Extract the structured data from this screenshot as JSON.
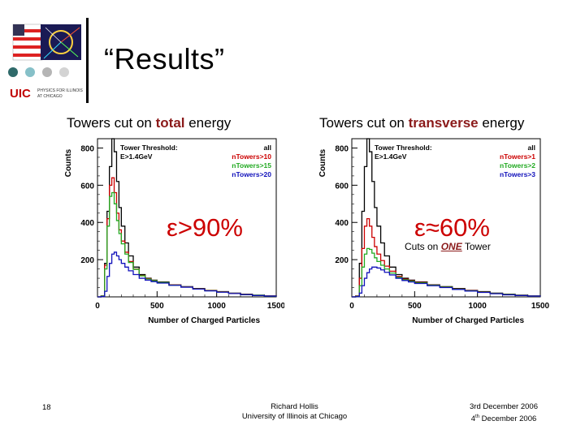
{
  "slide": {
    "title": "“Results”",
    "page_number": "18",
    "footer_center": [
      "Richard Hollis",
      "University of Illinois at Chicago"
    ],
    "footer_right_line1": "3rd December 2006",
    "footer_right_line2_num": "4",
    "footer_right_line2_sup": "th",
    "footer_right_line2_rest": " December 2006"
  },
  "logos": {
    "uic_text": "UIC",
    "uic_sub": [
      "PHYSICS FOR ILLINOIS",
      "AT CHICAGO"
    ],
    "circle_colors": [
      "#2f6a6a",
      "#86c0c8",
      "#b5b5b5",
      "#d3d3d3"
    ]
  },
  "left_panel": {
    "subtitle_pre": "Towers cut on ",
    "subtitle_hl": "total",
    "subtitle_post": " energy",
    "efficiency": "ε>90%",
    "efficiency_color": "#cc0000"
  },
  "right_panel": {
    "subtitle_pre": "Towers cut on ",
    "subtitle_hl": "transverse",
    "subtitle_post": " energy",
    "efficiency": "ε≈60%",
    "efficiency_color": "#cc0000",
    "note_pre": "Cuts on ",
    "note_hl": "ONE",
    "note_post": " Tower"
  },
  "chart_data": [
    {
      "type": "line",
      "xlabel": "Number of Charged Particles",
      "ylabel": "Counts",
      "xlim": [
        0,
        1500
      ],
      "ylim": [
        0,
        850
      ],
      "xticks": [
        "0",
        "500",
        "1000",
        "1500"
      ],
      "yticks": [
        "200",
        "400",
        "600",
        "800"
      ],
      "legend_title": "Tower Threshold:",
      "legend_subtitle": "E>1.4GeV",
      "legend_placement": "top-right",
      "series": [
        {
          "name": "all",
          "color": "#000000",
          "x": [
            0,
            30,
            60,
            80,
            100,
            120,
            140,
            160,
            180,
            200,
            230,
            260,
            300,
            350,
            400,
            450,
            500,
            600,
            700,
            800,
            900,
            1000,
            1100,
            1200,
            1300,
            1400,
            1500
          ],
          "values": [
            0,
            5,
            180,
            460,
            700,
            850,
            780,
            620,
            480,
            380,
            290,
            220,
            160,
            120,
            100,
            90,
            80,
            65,
            55,
            45,
            35,
            28,
            20,
            14,
            9,
            5,
            2
          ]
        },
        {
          "name": "nTowers>10",
          "color": "#cc0000",
          "x": [
            0,
            30,
            60,
            80,
            100,
            120,
            140,
            160,
            180,
            200,
            230,
            260,
            300,
            350,
            400,
            450,
            500,
            600,
            700,
            800,
            900,
            1000,
            1100,
            1200,
            1300,
            1400,
            1500
          ],
          "values": [
            0,
            5,
            170,
            420,
            600,
            640,
            560,
            450,
            360,
            300,
            240,
            190,
            150,
            115,
            98,
            88,
            78,
            64,
            54,
            44,
            34,
            27,
            19,
            13,
            8,
            5,
            2
          ]
        },
        {
          "name": "nTowers>15",
          "color": "#22aa22",
          "x": [
            0,
            30,
            60,
            80,
            100,
            120,
            140,
            160,
            180,
            200,
            230,
            260,
            300,
            350,
            400,
            450,
            500,
            600,
            700,
            800,
            900,
            1000,
            1100,
            1200,
            1300,
            1400,
            1500
          ],
          "values": [
            0,
            4,
            150,
            380,
            540,
            560,
            500,
            410,
            340,
            285,
            230,
            185,
            148,
            113,
            96,
            87,
            77,
            63,
            53,
            43,
            33,
            26,
            18,
            12,
            8,
            4,
            2
          ]
        },
        {
          "name": "nTowers>20",
          "color": "#1111bb",
          "x": [
            0,
            30,
            60,
            80,
            100,
            120,
            140,
            160,
            180,
            200,
            230,
            260,
            300,
            350,
            400,
            450,
            500,
            600,
            700,
            800,
            900,
            1000,
            1100,
            1200,
            1300,
            1400,
            1500
          ],
          "values": [
            0,
            2,
            30,
            110,
            180,
            230,
            240,
            220,
            200,
            180,
            160,
            140,
            120,
            100,
            90,
            82,
            74,
            62,
            52,
            42,
            32,
            25,
            18,
            12,
            7,
            4,
            2
          ]
        }
      ]
    },
    {
      "type": "line",
      "xlabel": "Number of Charged Particles",
      "ylabel": "Counts",
      "xlim": [
        0,
        1500
      ],
      "ylim": [
        0,
        850
      ],
      "xticks": [
        "0",
        "500",
        "1000",
        "1500"
      ],
      "yticks": [
        "200",
        "400",
        "600",
        "800"
      ],
      "legend_title": "Tower Threshold:",
      "legend_subtitle": "E>1.4GeV",
      "legend_placement": "top-right",
      "series": [
        {
          "name": "all",
          "color": "#000000",
          "x": [
            0,
            30,
            60,
            80,
            100,
            120,
            140,
            160,
            180,
            200,
            230,
            260,
            300,
            350,
            400,
            450,
            500,
            600,
            700,
            800,
            900,
            1000,
            1100,
            1200,
            1300,
            1400,
            1500
          ],
          "values": [
            0,
            5,
            180,
            460,
            700,
            850,
            780,
            620,
            480,
            380,
            290,
            220,
            160,
            120,
            100,
            90,
            80,
            65,
            55,
            45,
            35,
            28,
            20,
            14,
            9,
            5,
            2
          ]
        },
        {
          "name": "nTowers>1",
          "color": "#cc0000",
          "x": [
            0,
            30,
            60,
            80,
            100,
            120,
            140,
            160,
            180,
            200,
            230,
            260,
            300,
            350,
            400,
            450,
            500,
            600,
            700,
            800,
            900,
            1000,
            1100,
            1200,
            1300,
            1400,
            1500
          ],
          "values": [
            0,
            3,
            100,
            260,
            380,
            420,
            380,
            320,
            270,
            230,
            195,
            165,
            138,
            110,
            95,
            86,
            77,
            63,
            53,
            43,
            33,
            26,
            18,
            12,
            7,
            4,
            2
          ]
        },
        {
          "name": "nTowers>2",
          "color": "#22aa22",
          "x": [
            0,
            30,
            60,
            80,
            100,
            120,
            140,
            160,
            180,
            200,
            230,
            260,
            300,
            350,
            400,
            450,
            500,
            600,
            700,
            800,
            900,
            1000,
            1100,
            1200,
            1300,
            1400,
            1500
          ],
          "values": [
            0,
            2,
            60,
            160,
            230,
            260,
            255,
            235,
            210,
            190,
            170,
            150,
            128,
            105,
            92,
            84,
            75,
            62,
            52,
            42,
            32,
            25,
            18,
            12,
            7,
            4,
            2
          ]
        },
        {
          "name": "nTowers>3",
          "color": "#1111bb",
          "x": [
            0,
            30,
            60,
            80,
            100,
            120,
            140,
            160,
            180,
            200,
            230,
            260,
            300,
            350,
            400,
            450,
            500,
            600,
            700,
            800,
            900,
            1000,
            1100,
            1200,
            1300,
            1400,
            1500
          ],
          "values": [
            0,
            1,
            20,
            60,
            100,
            130,
            150,
            160,
            160,
            155,
            145,
            132,
            118,
            100,
            88,
            80,
            72,
            60,
            50,
            40,
            31,
            24,
            17,
            11,
            7,
            4,
            2
          ]
        }
      ]
    }
  ]
}
